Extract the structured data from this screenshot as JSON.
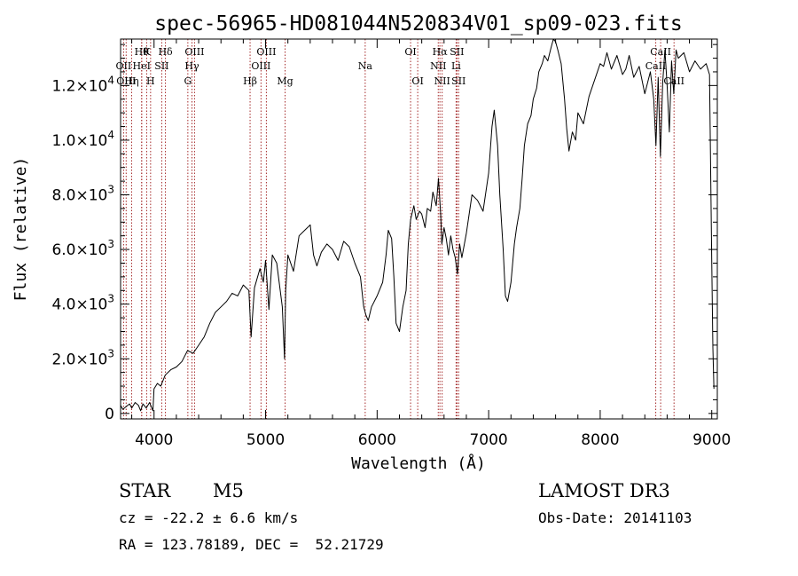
{
  "chart_data": {
    "type": "line",
    "title": "spec-56965-HD081044N520834V01_sp09-023.fits",
    "xlabel": "Wavelength (Å)",
    "ylabel": "Flux (relative)",
    "xlim": [
      3700,
      9050
    ],
    "ylim": [
      -200,
      13700
    ],
    "x_ticks": [
      {
        "value": 4000,
        "label": "4000"
      },
      {
        "value": 5000,
        "label": "5000"
      },
      {
        "value": 6000,
        "label": "6000"
      },
      {
        "value": 7000,
        "label": "7000"
      },
      {
        "value": 8000,
        "label": "8000"
      },
      {
        "value": 9000,
        "label": "9000"
      }
    ],
    "y_ticks": [
      {
        "value": 0,
        "mant": "0",
        "exp": ""
      },
      {
        "value": 2000,
        "mant": "2.0×10",
        "exp": "3"
      },
      {
        "value": 4000,
        "mant": "4.0×10",
        "exp": "3"
      },
      {
        "value": 6000,
        "mant": "6.0×10",
        "exp": "3"
      },
      {
        "value": 8000,
        "mant": "8.0×10",
        "exp": "3"
      },
      {
        "value": 10000,
        "mant": "1.0×10",
        "exp": "4"
      },
      {
        "value": 12000,
        "mant": "1.2×10",
        "exp": "4"
      }
    ],
    "series": [
      {
        "name": "flux",
        "x": [
          3700,
          3720,
          3750,
          3780,
          3800,
          3830,
          3860,
          3880,
          3900,
          3930,
          3960,
          3990,
          4000,
          4030,
          4060,
          4100,
          4150,
          4200,
          4250,
          4300,
          4350,
          4400,
          4450,
          4500,
          4550,
          4600,
          4650,
          4700,
          4750,
          4800,
          4850,
          4870,
          4900,
          4950,
          4980,
          5000,
          5030,
          5060,
          5100,
          5150,
          5170,
          5180,
          5200,
          5250,
          5300,
          5350,
          5400,
          5430,
          5460,
          5500,
          5550,
          5600,
          5650,
          5700,
          5750,
          5800,
          5850,
          5880,
          5900,
          5920,
          5950,
          6000,
          6050,
          6080,
          6100,
          6130,
          6150,
          6170,
          6200,
          6230,
          6260,
          6280,
          6300,
          6330,
          6350,
          6380,
          6400,
          6430,
          6450,
          6480,
          6500,
          6530,
          6550,
          6570,
          6580,
          6600,
          6620,
          6640,
          6660,
          6680,
          6700,
          6720,
          6740,
          6760,
          6800,
          6850,
          6900,
          6950,
          7000,
          7030,
          7050,
          7080,
          7100,
          7130,
          7150,
          7170,
          7200,
          7230,
          7250,
          7280,
          7300,
          7320,
          7350,
          7380,
          7400,
          7430,
          7450,
          7480,
          7500,
          7530,
          7560,
          7580,
          7600,
          7620,
          7650,
          7680,
          7700,
          7720,
          7750,
          7780,
          7800,
          7850,
          7900,
          7950,
          8000,
          8030,
          8060,
          8100,
          8150,
          8200,
          8230,
          8260,
          8300,
          8350,
          8400,
          8450,
          8480,
          8500,
          8520,
          8540,
          8560,
          8580,
          8600,
          8620,
          8640,
          8660,
          8680,
          8700,
          8750,
          8800,
          8850,
          8900,
          8950,
          8980,
          9000,
          9010,
          9020
        ],
        "y": [
          300,
          150,
          250,
          350,
          200,
          400,
          300,
          100,
          350,
          200,
          400,
          100,
          900,
          1100,
          1000,
          1400,
          1600,
          1700,
          1900,
          2300,
          2200,
          2500,
          2800,
          3300,
          3700,
          3900,
          4100,
          4400,
          4300,
          4700,
          4500,
          2800,
          4600,
          5300,
          4800,
          5600,
          3800,
          5800,
          5500,
          3900,
          2000,
          4500,
          5800,
          5200,
          6500,
          6700,
          6900,
          5800,
          5400,
          5900,
          6200,
          6000,
          5600,
          6300,
          6100,
          5500,
          5000,
          3900,
          3600,
          3400,
          3900,
          4300,
          4800,
          5800,
          6700,
          6400,
          5000,
          3300,
          3000,
          3900,
          4500,
          6200,
          7100,
          7600,
          7100,
          7400,
          7300,
          6800,
          7500,
          7400,
          8100,
          7600,
          8600,
          7300,
          6200,
          6800,
          6400,
          5800,
          6500,
          6000,
          5700,
          5100,
          6200,
          5700,
          6600,
          8000,
          7800,
          7400,
          8800,
          10500,
          11100,
          9800,
          8000,
          6000,
          4300,
          4100,
          4800,
          6200,
          6800,
          7500,
          8600,
          9800,
          10600,
          10900,
          11500,
          11900,
          12500,
          12800,
          13100,
          12900,
          13400,
          13700,
          13600,
          13300,
          12800,
          11500,
          10400,
          9600,
          10300,
          10000,
          11000,
          10600,
          11600,
          12200,
          12800,
          12700,
          13200,
          12600,
          13100,
          12400,
          12600,
          13100,
          12300,
          12700,
          11700,
          12500,
          11500,
          9800,
          12300,
          9400,
          12100,
          13300,
          12000,
          10300,
          12900,
          11700,
          13300,
          13000,
          13200,
          12500,
          12900,
          12600,
          12800,
          12400,
          5600,
          2400,
          900
        ]
      }
    ],
    "lines": [
      {
        "wl": 3727,
        "label": "OII",
        "row": 2
      },
      {
        "wl": 3750,
        "label": "OIII",
        "row": 3
      },
      {
        "wl": 3799,
        "label": "Hη",
        "row": 3
      },
      {
        "wl": 3889,
        "label": "Hθ",
        "row": 1
      },
      {
        "wl": 3889,
        "label": "HeI",
        "row": 2
      },
      {
        "wl": 3934,
        "label": "K",
        "row": 1
      },
      {
        "wl": 3969,
        "label": "H",
        "row": 3
      },
      {
        "wl": 4069,
        "label": "SII",
        "row": 2
      },
      {
        "wl": 4102,
        "label": "Hδ",
        "row": 1
      },
      {
        "wl": 4303,
        "label": "G",
        "row": 3
      },
      {
        "wl": 4340,
        "label": "Hγ",
        "row": 2
      },
      {
        "wl": 4363,
        "label": "OIII",
        "row": 1
      },
      {
        "wl": 4861,
        "label": "Hβ",
        "row": 3
      },
      {
        "wl": 4959,
        "label": "OIII",
        "row": 2
      },
      {
        "wl": 5007,
        "label": "OIII",
        "row": 1
      },
      {
        "wl": 5175,
        "label": "Mg",
        "row": 3
      },
      {
        "wl": 5893,
        "label": "Na",
        "row": 2
      },
      {
        "wl": 6300,
        "label": "OI",
        "row": 1
      },
      {
        "wl": 6364,
        "label": "OI",
        "row": 3
      },
      {
        "wl": 6548,
        "label": "NII",
        "row": 2
      },
      {
        "wl": 6563,
        "label": "Hα",
        "row": 1
      },
      {
        "wl": 6583,
        "label": "NII",
        "row": 3
      },
      {
        "wl": 6708,
        "label": "Li",
        "row": 2
      },
      {
        "wl": 6716,
        "label": "SII",
        "row": 1
      },
      {
        "wl": 6731,
        "label": "SII",
        "row": 3
      },
      {
        "wl": 8498,
        "label": "CaII",
        "row": 2
      },
      {
        "wl": 8542,
        "label": "CaII",
        "row": 1
      },
      {
        "wl": 8662,
        "label": "CaII",
        "row": 3
      }
    ],
    "colors": {
      "axis": "#000000",
      "line": "#000000",
      "marker": "#a52a2a",
      "background": "#ffffff"
    }
  },
  "info": {
    "class": "STAR",
    "subclass": "M5",
    "survey": "LAMOST DR3",
    "cz": "cz = -22.2 ± 6.6 km/s",
    "obs_date": "Obs-Date: 20141103",
    "coords": "RA = 123.78189, DEC =  52.21729"
  }
}
